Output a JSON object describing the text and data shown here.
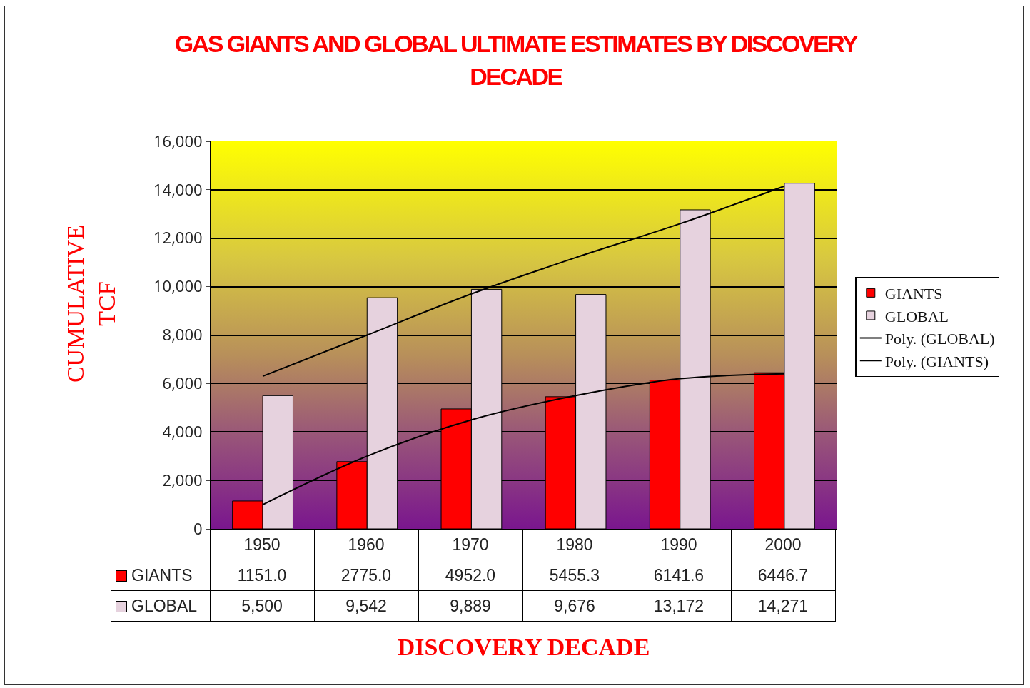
{
  "chart_data": {
    "type": "bar",
    "title": "GAS GIANTS AND GLOBAL ULTIMATE ESTIMATES BY DISCOVERY DECADE",
    "xlabel": "DISCOVERY DECADE",
    "ylabel": "CUMULATIVE TCF",
    "categories": [
      "1950",
      "1960",
      "1970",
      "1980",
      "1990",
      "2000"
    ],
    "series": [
      {
        "name": "GIANTS",
        "color": "#ff0000",
        "values": [
          1151.0,
          2775.0,
          4952.0,
          5455.3,
          6141.6,
          6446.7
        ],
        "value_labels": [
          "1151.0",
          "2775.0",
          "4952.0",
          "5455.3",
          "6141.6",
          "6446.7"
        ]
      },
      {
        "name": "GLOBAL",
        "color": "#e6d2de",
        "values": [
          5500,
          9542,
          9889,
          9676,
          13172,
          14271
        ],
        "value_labels": [
          "5,500",
          "9,542",
          "9,889",
          "9,676",
          "13,172",
          "14,271"
        ]
      },
      {
        "name": "Poly. (GLOBAL)",
        "type": "line",
        "color": "#000000",
        "values": [
          6300,
          8000,
          9700,
          11200,
          12600,
          14150
        ]
      },
      {
        "name": "Poly. (GIANTS)",
        "type": "line",
        "color": "#000000",
        "values": [
          1000,
          3000,
          4500,
          5500,
          6200,
          6400
        ]
      }
    ],
    "ylim": [
      0,
      16000
    ],
    "yticks": [
      {
        "value": 0,
        "label": "0"
      },
      {
        "value": 2000,
        "label": "2,000"
      },
      {
        "value": 4000,
        "label": "4,000"
      },
      {
        "value": 6000,
        "label": "6,000"
      },
      {
        "value": 8000,
        "label": "8,000"
      },
      {
        "value": 10000,
        "label": "10,000"
      },
      {
        "value": 12000,
        "label": "12,000"
      },
      {
        "value": 14000,
        "label": "14,000"
      },
      {
        "value": 16000,
        "label": "16,000"
      }
    ],
    "grid": "y",
    "legend": "right",
    "marker": "none",
    "line_style": "solid"
  }
}
